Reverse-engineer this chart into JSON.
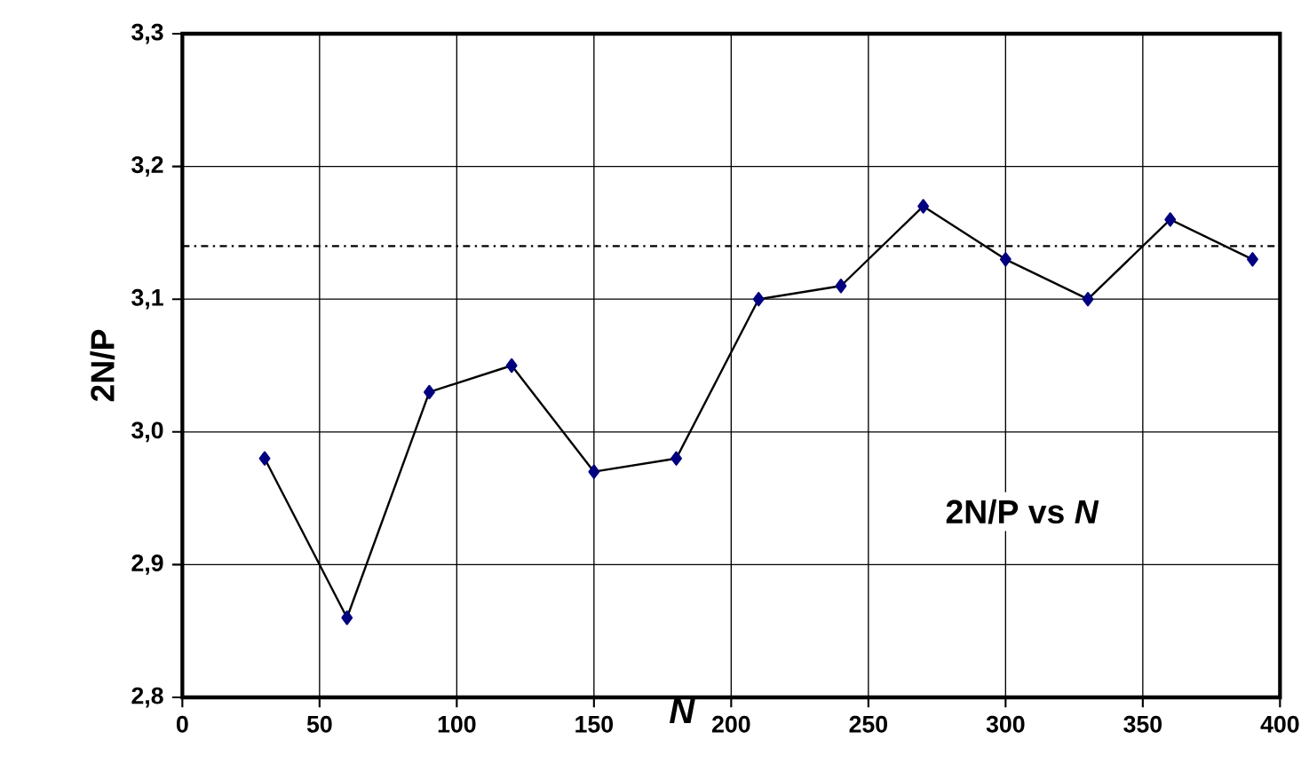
{
  "chart_data": {
    "type": "line",
    "xlabel": "N",
    "ylabel": "2N/P",
    "annotations": [
      "2N/P vs *N*"
    ],
    "series": [
      {
        "color": "#000080",
        "x": [
          30,
          60,
          90,
          120,
          150,
          180,
          210,
          240,
          270,
          300,
          330,
          360,
          390
        ],
        "values": [
          2.98,
          2.86,
          3.03,
          3.05,
          2.97,
          2.98,
          3.1,
          3.11,
          3.17,
          3.13,
          3.1,
          3.16,
          3.13
        ]
      }
    ],
    "xlim": [
      0,
      400
    ],
    "xticks": [
      0,
      50,
      100,
      150,
      200,
      250,
      300,
      350,
      400
    ],
    "ylim": [
      2.8,
      3.3
    ],
    "yticks": [
      {
        "value": 2.8,
        "label": "2,8"
      },
      {
        "value": 2.9,
        "label": "2,9"
      },
      {
        "value": 3.0,
        "label": "3,0"
      },
      {
        "value": 3.1,
        "label": "3,1"
      },
      {
        "value": 3.2,
        "label": "3,2"
      },
      {
        "value": 3.3,
        "label": "3,3"
      }
    ],
    "ref_lines": [
      {
        "axis": "y",
        "value": 3.14,
        "line_style": "dashdot",
        "color": "#000000"
      }
    ],
    "grid": true,
    "marker": "diamond",
    "line_style": "solid"
  }
}
